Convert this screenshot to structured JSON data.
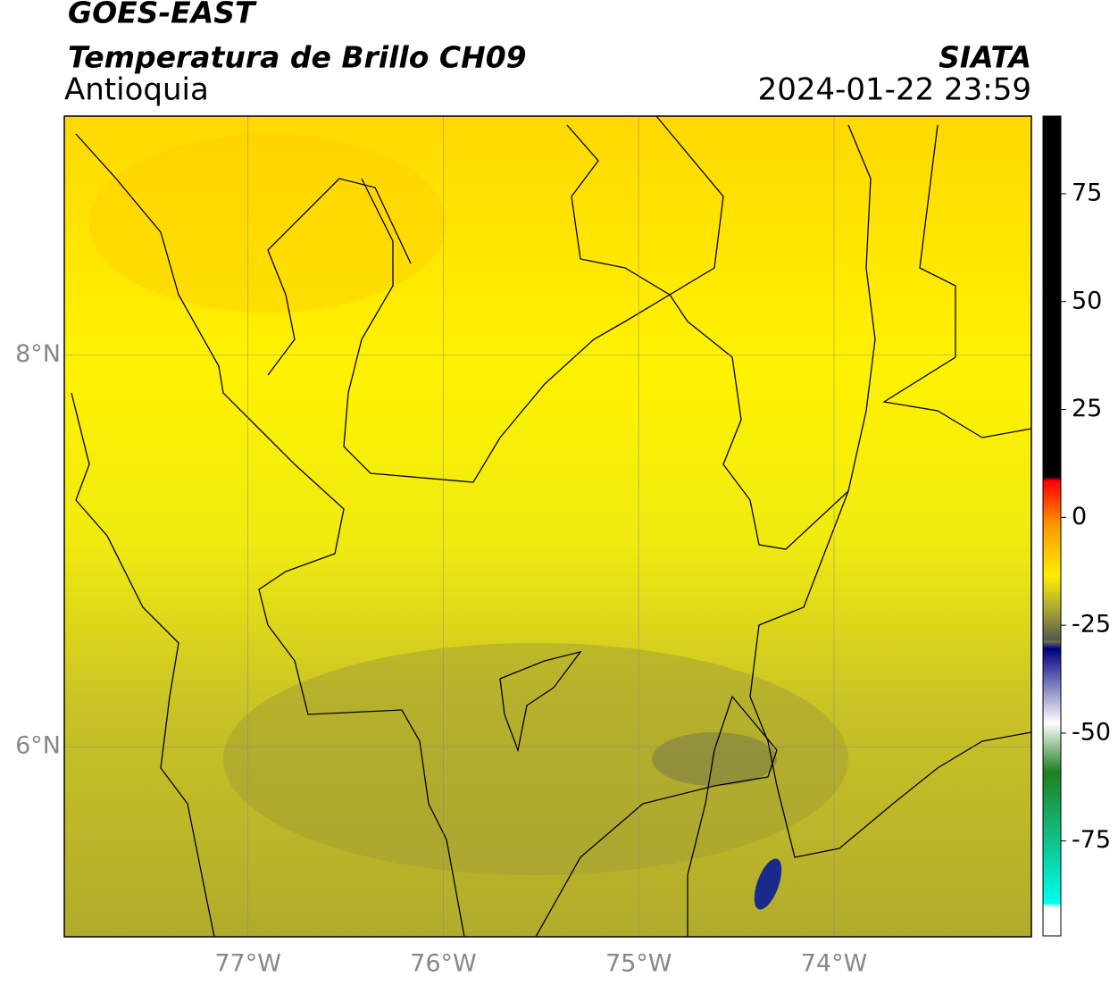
{
  "header": {
    "title": "GOES-EAST",
    "subtitle": "Temperatura de Brillo CH09",
    "region": "Antioquia",
    "source": "SIATA",
    "datetime": "2024-01-22 23:59"
  },
  "map": {
    "xlim": [
      -77.94,
      -72.99
    ],
    "ylim": [
      5.03,
      9.22
    ],
    "xticks": [
      {
        "value": -77,
        "label": "77°W"
      },
      {
        "value": -76,
        "label": "76°W"
      },
      {
        "value": -75,
        "label": "75°W"
      },
      {
        "value": -74,
        "label": "74°W"
      }
    ],
    "yticks": [
      {
        "value": 8,
        "label": "8°N"
      },
      {
        "value": 6,
        "label": "6°N"
      }
    ],
    "grid": true
  },
  "colorbar": {
    "lim": [
      -97,
      93
    ],
    "ticks": [
      75,
      50,
      25,
      0,
      -25,
      -50,
      -75
    ]
  }
}
